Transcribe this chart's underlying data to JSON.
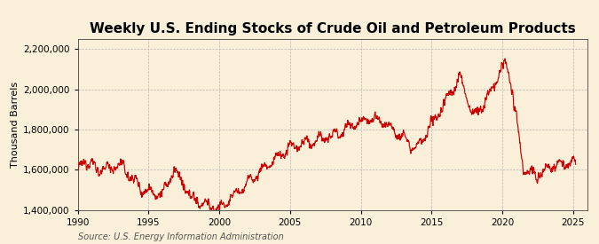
{
  "title": "Weekly U.S. Ending Stocks of Crude Oil and Petroleum Products",
  "ylabel": "Thousand Barrels",
  "source": "Source: U.S. Energy Information Administration",
  "line_color": "#cc0000",
  "background_color": "#faefd8",
  "plot_bg_color": "#faefd8",
  "grid_color": "#aaaaaa",
  "xlim": [
    1990,
    2026
  ],
  "ylim": [
    1400000,
    2250000
  ],
  "xticks": [
    1990,
    1995,
    2000,
    2005,
    2010,
    2015,
    2020,
    2025
  ],
  "yticks": [
    1400000,
    1600000,
    1800000,
    2000000,
    2200000
  ],
  "title_fontsize": 11,
  "label_fontsize": 8,
  "tick_fontsize": 7.5,
  "source_fontsize": 7
}
